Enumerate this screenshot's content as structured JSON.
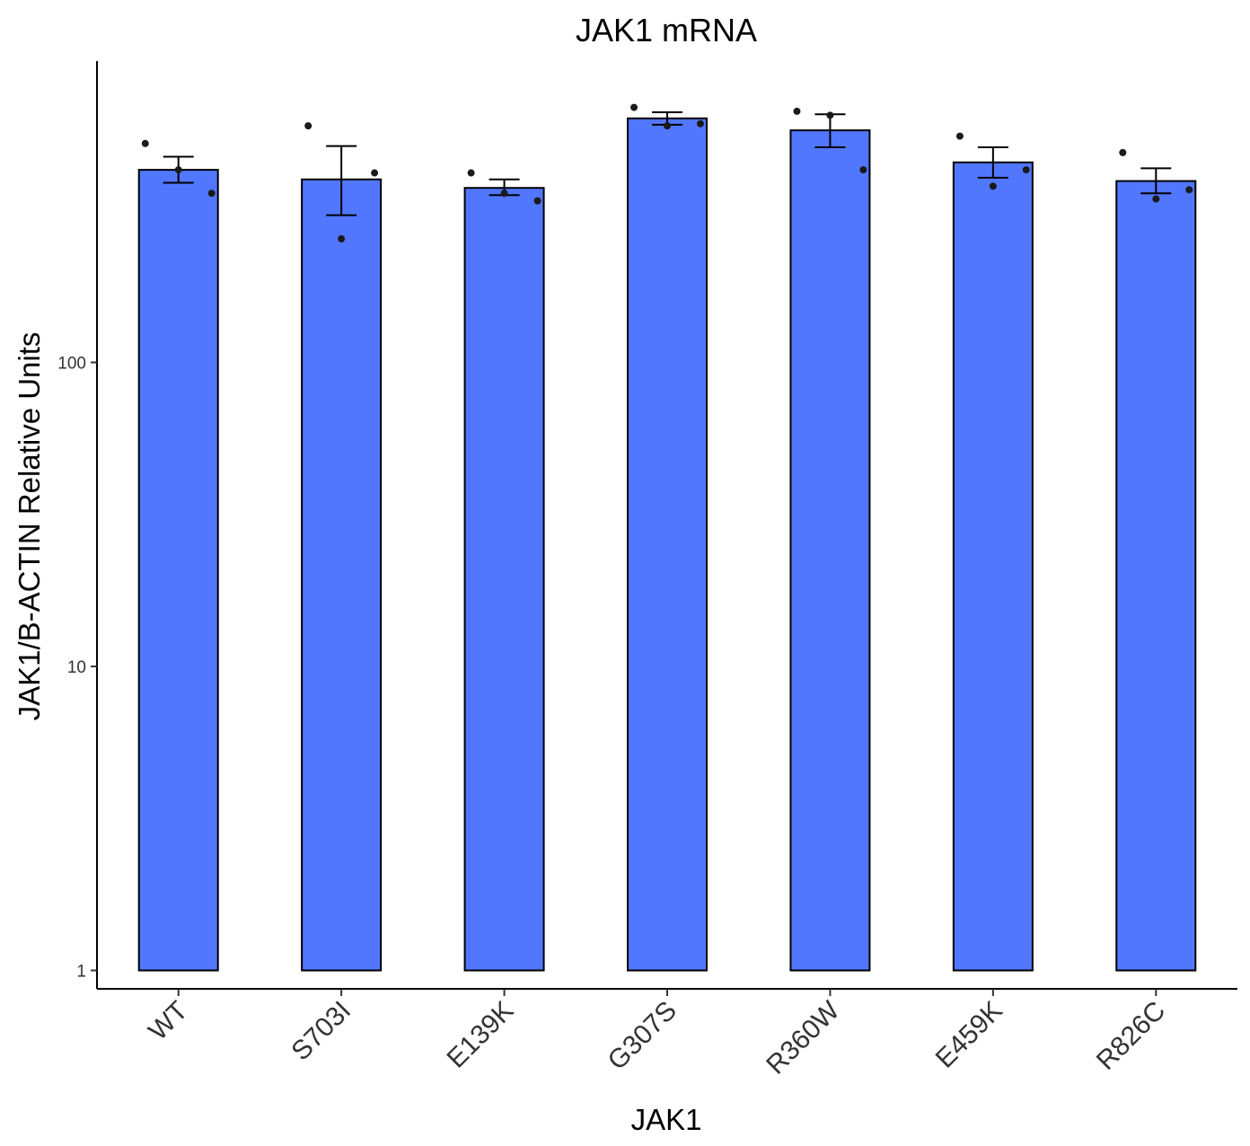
{
  "chart_data": {
    "type": "bar",
    "title": "JAK1 mRNA",
    "xlabel": "JAK1",
    "ylabel": "JAK1/B-ACTIN Relative Units",
    "y_scale": "log10",
    "ylim": [
      0.87,
      980
    ],
    "y_ticks": [
      1,
      10,
      100
    ],
    "y_tick_labels": [
      "1",
      "10",
      "100"
    ],
    "bar_baseline": 1,
    "grid": false,
    "legend": "none",
    "bar_fill": "#5177FF",
    "bar_stroke": "#000000",
    "categories": [
      "WT",
      "S703I",
      "E139K",
      "G307S",
      "R360W",
      "E459K",
      "R826C"
    ],
    "values": [
      430,
      400,
      375,
      635,
      580,
      455,
      395
    ],
    "error_low": [
      390,
      305,
      355,
      605,
      510,
      405,
      360
    ],
    "error_high": [
      475,
      515,
      400,
      665,
      655,
      510,
      435
    ],
    "points": [
      [
        525,
        430,
        360
      ],
      [
        600,
        255,
        420
      ],
      [
        420,
        360,
        340
      ],
      [
        690,
        600,
        610
      ],
      [
        670,
        650,
        430
      ],
      [
        555,
        380,
        430
      ],
      [
        490,
        345,
        370
      ]
    ]
  }
}
